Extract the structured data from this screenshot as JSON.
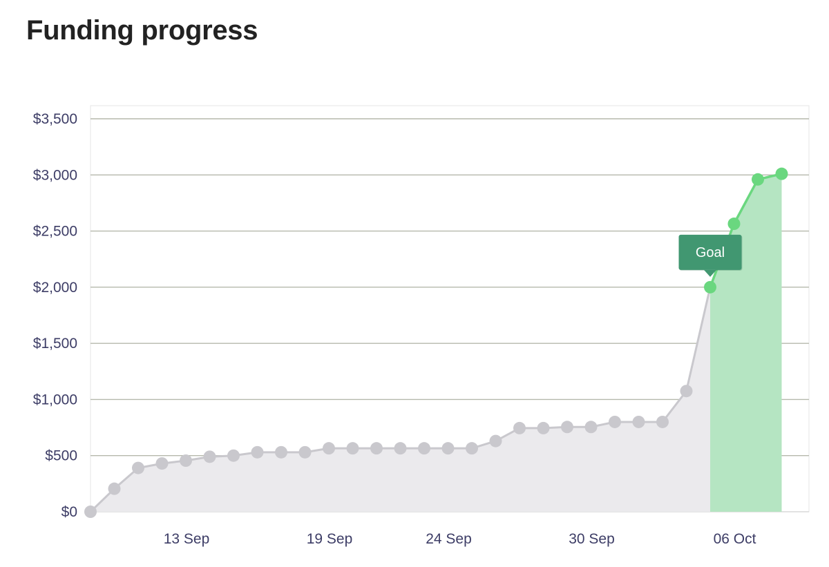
{
  "title": "Funding progress",
  "chart_data": {
    "type": "line",
    "title": "Funding progress",
    "xlabel": "",
    "ylabel": "",
    "ylim": [
      0,
      3500
    ],
    "y_ticks": [
      0,
      500,
      1000,
      1500,
      2000,
      2500,
      3000,
      3500
    ],
    "y_tick_labels": [
      "$0",
      "$500",
      "$1,000",
      "$1,500",
      "$2,000",
      "$2,500",
      "$3,000",
      "$3,500"
    ],
    "x_ticks": [
      {
        "day": 13,
        "label": "13 Sep"
      },
      {
        "day": 19,
        "label": "19 Sep"
      },
      {
        "day": 24,
        "label": "24 Sep"
      },
      {
        "day": 30,
        "label": "30 Sep"
      },
      {
        "day": 36,
        "label": "06 Oct"
      }
    ],
    "grid": true,
    "legend": "none",
    "goal": {
      "value": 2000,
      "label": "Goal",
      "date": "03 Oct"
    },
    "series": [
      {
        "points": [
          {
            "date": "09 Sep",
            "value": 0
          },
          {
            "date": "10 Sep",
            "value": 205
          },
          {
            "date": "11 Sep",
            "value": 390
          },
          {
            "date": "12 Sep",
            "value": 430
          },
          {
            "date": "13 Sep",
            "value": 455
          },
          {
            "date": "14 Sep",
            "value": 490
          },
          {
            "date": "15 Sep",
            "value": 500
          },
          {
            "date": "16 Sep",
            "value": 530
          },
          {
            "date": "17 Sep",
            "value": 530
          },
          {
            "date": "18 Sep",
            "value": 530
          },
          {
            "date": "19 Sep",
            "value": 565
          },
          {
            "date": "20 Sep",
            "value": 565
          },
          {
            "date": "21 Sep",
            "value": 565
          },
          {
            "date": "22 Sep",
            "value": 565
          },
          {
            "date": "23 Sep",
            "value": 565
          },
          {
            "date": "24 Sep",
            "value": 565
          },
          {
            "date": "25 Sep",
            "value": 565
          },
          {
            "date": "26 Sep",
            "value": 630
          },
          {
            "date": "27 Sep",
            "value": 745
          },
          {
            "date": "28 Sep",
            "value": 745
          },
          {
            "date": "29 Sep",
            "value": 755
          },
          {
            "date": "30 Sep",
            "value": 755
          },
          {
            "date": "01 Oct",
            "value": 800
          },
          {
            "date": "02 Oct",
            "value": 800
          },
          {
            "date": "03 Oct",
            "value": 800
          },
          {
            "date": "04 Oct",
            "value": 1075
          },
          {
            "date": "05 Oct",
            "value": 2000
          },
          {
            "date": "06 Oct",
            "value": 2565
          },
          {
            "date": "07 Oct",
            "value": 2960
          },
          {
            "date": "08 Oct",
            "value": 3010
          }
        ]
      }
    ],
    "colors": {
      "before_goal": "#c9c8cd",
      "before_goal_fill": "#ebeaed",
      "after_goal": "#6ad77f",
      "after_goal_fill": "#b5e5c2",
      "goal_tooltip": "#419771",
      "goal_tick": "#3aa06a",
      "grid": "#b5b8ab",
      "axis_text": "#3d3d66"
    }
  }
}
